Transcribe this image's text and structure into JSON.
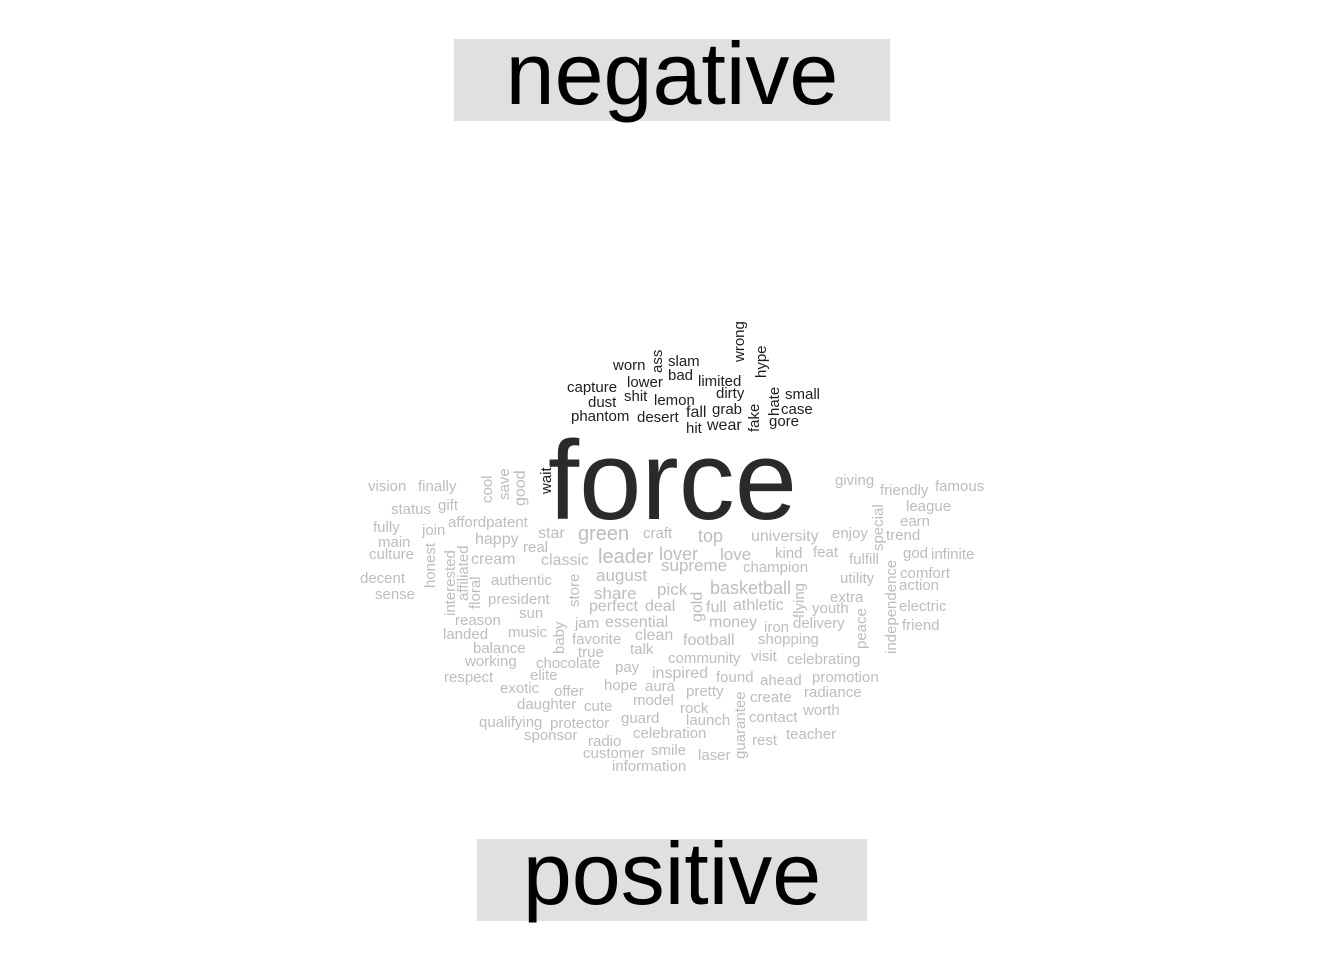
{
  "labels": {
    "top": "negative",
    "bottom": "positive"
  },
  "colors": {
    "negative": "#1f1f1f",
    "positive": "#bdbdbd",
    "shared": "#2a2a2a",
    "label_bg": "#e0e0e0"
  },
  "words": [
    {
      "t": "force",
      "g": "shared"
    },
    {
      "t": "wrong",
      "g": "negative"
    },
    {
      "t": "hype",
      "g": "negative"
    },
    {
      "t": "worn",
      "g": "negative"
    },
    {
      "t": "ass",
      "g": "negative"
    },
    {
      "t": "slam",
      "g": "negative"
    },
    {
      "t": "bad",
      "g": "negative"
    },
    {
      "t": "lower",
      "g": "negative"
    },
    {
      "t": "limited",
      "g": "negative"
    },
    {
      "t": "capture",
      "g": "negative"
    },
    {
      "t": "dirty",
      "g": "negative"
    },
    {
      "t": "hate",
      "g": "negative"
    },
    {
      "t": "small",
      "g": "negative"
    },
    {
      "t": "dust",
      "g": "negative"
    },
    {
      "t": "shit",
      "g": "negative"
    },
    {
      "t": "lemon",
      "g": "negative"
    },
    {
      "t": "grab",
      "g": "negative"
    },
    {
      "t": "fake",
      "g": "negative"
    },
    {
      "t": "case",
      "g": "negative"
    },
    {
      "t": "phantom",
      "g": "negative"
    },
    {
      "t": "desert",
      "g": "negative"
    },
    {
      "t": "fall",
      "g": "negative"
    },
    {
      "t": "gore",
      "g": "negative"
    },
    {
      "t": "wear",
      "g": "negative"
    },
    {
      "t": "hit",
      "g": "negative"
    },
    {
      "t": "wait",
      "g": "negative"
    },
    {
      "t": "vision",
      "g": "positive"
    },
    {
      "t": "finally",
      "g": "positive"
    },
    {
      "t": "cool",
      "g": "positive"
    },
    {
      "t": "save",
      "g": "positive"
    },
    {
      "t": "good",
      "g": "positive"
    },
    {
      "t": "giving",
      "g": "positive"
    },
    {
      "t": "friendly",
      "g": "positive"
    },
    {
      "t": "famous",
      "g": "positive"
    },
    {
      "t": "status",
      "g": "positive"
    },
    {
      "t": "gift",
      "g": "positive"
    },
    {
      "t": "league",
      "g": "positive"
    },
    {
      "t": "special",
      "g": "positive"
    },
    {
      "t": "fully",
      "g": "positive"
    },
    {
      "t": "affordpatent",
      "g": "positive"
    },
    {
      "t": "earn",
      "g": "positive"
    },
    {
      "t": "join",
      "g": "positive"
    },
    {
      "t": "star",
      "g": "positive"
    },
    {
      "t": "craft",
      "g": "positive"
    },
    {
      "t": "enjoy",
      "g": "positive"
    },
    {
      "t": "trend",
      "g": "positive"
    },
    {
      "t": "main",
      "g": "positive"
    },
    {
      "t": "happy",
      "g": "positive"
    },
    {
      "t": "green",
      "g": "positive"
    },
    {
      "t": "top",
      "g": "positive"
    },
    {
      "t": "university",
      "g": "positive"
    },
    {
      "t": "culture",
      "g": "positive"
    },
    {
      "t": "real",
      "g": "positive"
    },
    {
      "t": "god",
      "g": "positive"
    },
    {
      "t": "infinite",
      "g": "positive"
    },
    {
      "t": "honest",
      "g": "positive"
    },
    {
      "t": "interested",
      "g": "positive"
    },
    {
      "t": "affiliated",
      "g": "positive"
    },
    {
      "t": "cream",
      "g": "positive"
    },
    {
      "t": "classic",
      "g": "positive"
    },
    {
      "t": "leader",
      "g": "positive"
    },
    {
      "t": "lover",
      "g": "positive"
    },
    {
      "t": "love",
      "g": "positive"
    },
    {
      "t": "kind",
      "g": "positive"
    },
    {
      "t": "feat",
      "g": "positive"
    },
    {
      "t": "fulfill",
      "g": "positive"
    },
    {
      "t": "supreme",
      "g": "positive"
    },
    {
      "t": "champion",
      "g": "positive"
    },
    {
      "t": "comfort",
      "g": "positive"
    },
    {
      "t": "decent",
      "g": "positive"
    },
    {
      "t": "floral",
      "g": "positive"
    },
    {
      "t": "authentic",
      "g": "positive"
    },
    {
      "t": "store",
      "g": "positive"
    },
    {
      "t": "august",
      "g": "positive"
    },
    {
      "t": "utility",
      "g": "positive"
    },
    {
      "t": "action",
      "g": "positive"
    },
    {
      "t": "sense",
      "g": "positive"
    },
    {
      "t": "pick",
      "g": "positive"
    },
    {
      "t": "basketball",
      "g": "positive"
    },
    {
      "t": "independence",
      "g": "positive"
    },
    {
      "t": "president",
      "g": "positive"
    },
    {
      "t": "share",
      "g": "positive"
    },
    {
      "t": "extra",
      "g": "positive"
    },
    {
      "t": "gold",
      "g": "positive"
    },
    {
      "t": "flying",
      "g": "positive"
    },
    {
      "t": "perfect",
      "g": "positive"
    },
    {
      "t": "deal",
      "g": "positive"
    },
    {
      "t": "full",
      "g": "positive"
    },
    {
      "t": "athletic",
      "g": "positive"
    },
    {
      "t": "youth",
      "g": "positive"
    },
    {
      "t": "electric",
      "g": "positive"
    },
    {
      "t": "sun",
      "g": "positive"
    },
    {
      "t": "reason",
      "g": "positive"
    },
    {
      "t": "jam",
      "g": "positive"
    },
    {
      "t": "essential",
      "g": "positive"
    },
    {
      "t": "money",
      "g": "positive"
    },
    {
      "t": "iron",
      "g": "positive"
    },
    {
      "t": "delivery",
      "g": "positive"
    },
    {
      "t": "peace",
      "g": "positive"
    },
    {
      "t": "friend",
      "g": "positive"
    },
    {
      "t": "landed",
      "g": "positive"
    },
    {
      "t": "music",
      "g": "positive"
    },
    {
      "t": "baby",
      "g": "positive"
    },
    {
      "t": "clean",
      "g": "positive"
    },
    {
      "t": "favorite",
      "g": "positive"
    },
    {
      "t": "football",
      "g": "positive"
    },
    {
      "t": "shopping",
      "g": "positive"
    },
    {
      "t": "balance",
      "g": "positive"
    },
    {
      "t": "true",
      "g": "positive"
    },
    {
      "t": "talk",
      "g": "positive"
    },
    {
      "t": "working",
      "g": "positive"
    },
    {
      "t": "community",
      "g": "positive"
    },
    {
      "t": "visit",
      "g": "positive"
    },
    {
      "t": "celebrating",
      "g": "positive"
    },
    {
      "t": "chocolate",
      "g": "positive"
    },
    {
      "t": "pay",
      "g": "positive"
    },
    {
      "t": "inspired",
      "g": "positive"
    },
    {
      "t": "found",
      "g": "positive"
    },
    {
      "t": "ahead",
      "g": "positive"
    },
    {
      "t": "promotion",
      "g": "positive"
    },
    {
      "t": "respect",
      "g": "positive"
    },
    {
      "t": "elite",
      "g": "positive"
    },
    {
      "t": "exotic",
      "g": "positive"
    },
    {
      "t": "hope",
      "g": "positive"
    },
    {
      "t": "aura",
      "g": "positive"
    },
    {
      "t": "offer",
      "g": "positive"
    },
    {
      "t": "pretty",
      "g": "positive"
    },
    {
      "t": "radiance",
      "g": "positive"
    },
    {
      "t": "daughter",
      "g": "positive"
    },
    {
      "t": "model",
      "g": "positive"
    },
    {
      "t": "guarantee",
      "g": "positive"
    },
    {
      "t": "create",
      "g": "positive"
    },
    {
      "t": "cute",
      "g": "positive"
    },
    {
      "t": "rock",
      "g": "positive"
    },
    {
      "t": "worth",
      "g": "positive"
    },
    {
      "t": "qualifying",
      "g": "positive"
    },
    {
      "t": "protector",
      "g": "positive"
    },
    {
      "t": "guard",
      "g": "positive"
    },
    {
      "t": "launch",
      "g": "positive"
    },
    {
      "t": "contact",
      "g": "positive"
    },
    {
      "t": "sponsor",
      "g": "positive"
    },
    {
      "t": "celebration",
      "g": "positive"
    },
    {
      "t": "teacher",
      "g": "positive"
    },
    {
      "t": "radio",
      "g": "positive"
    },
    {
      "t": "rest",
      "g": "positive"
    },
    {
      "t": "customer",
      "g": "positive"
    },
    {
      "t": "smile",
      "g": "positive"
    },
    {
      "t": "laser",
      "g": "positive"
    },
    {
      "t": "information",
      "g": "positive"
    }
  ]
}
